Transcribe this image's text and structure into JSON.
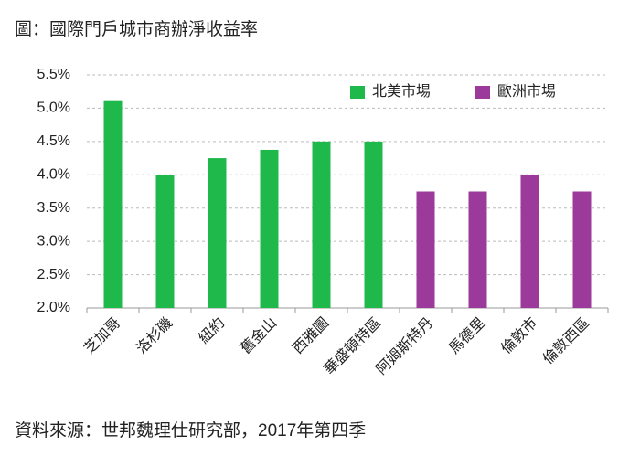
{
  "chart_data": {
    "type": "bar",
    "title": "圖：國際門戶城市商辦淨收益率",
    "source": "資料來源：世邦魏理仕研究部，2017年第四季",
    "categories": [
      "芝加哥",
      "洛杉磯",
      "紐約",
      "舊金山",
      "西雅圖",
      "華盛頓特區",
      "阿姆斯特丹",
      "馬德里",
      "倫敦市",
      "倫敦西區"
    ],
    "series": [
      {
        "name": "北美市場",
        "color": "#1fb84a",
        "values": [
          5.12,
          4.0,
          4.25,
          4.375,
          4.5,
          4.5,
          null,
          null,
          null,
          null
        ]
      },
      {
        "name": "歐洲市場",
        "color": "#9b3a9b",
        "values": [
          null,
          null,
          null,
          null,
          null,
          null,
          3.75,
          3.75,
          4.0,
          3.75
        ]
      }
    ],
    "ylim": [
      2.0,
      5.5
    ],
    "yticks": [
      {
        "value": 2.0,
        "label": "2.0%"
      },
      {
        "value": 2.5,
        "label": "2.5%"
      },
      {
        "value": 3.0,
        "label": "3.0%"
      },
      {
        "value": 3.5,
        "label": "3.5%"
      },
      {
        "value": 4.0,
        "label": "4.0%"
      },
      {
        "value": 4.5,
        "label": "4.5%"
      },
      {
        "value": 5.0,
        "label": "5.0%"
      },
      {
        "value": 5.5,
        "label": "5.5%"
      }
    ],
    "grid": true,
    "legend": "top-right"
  }
}
